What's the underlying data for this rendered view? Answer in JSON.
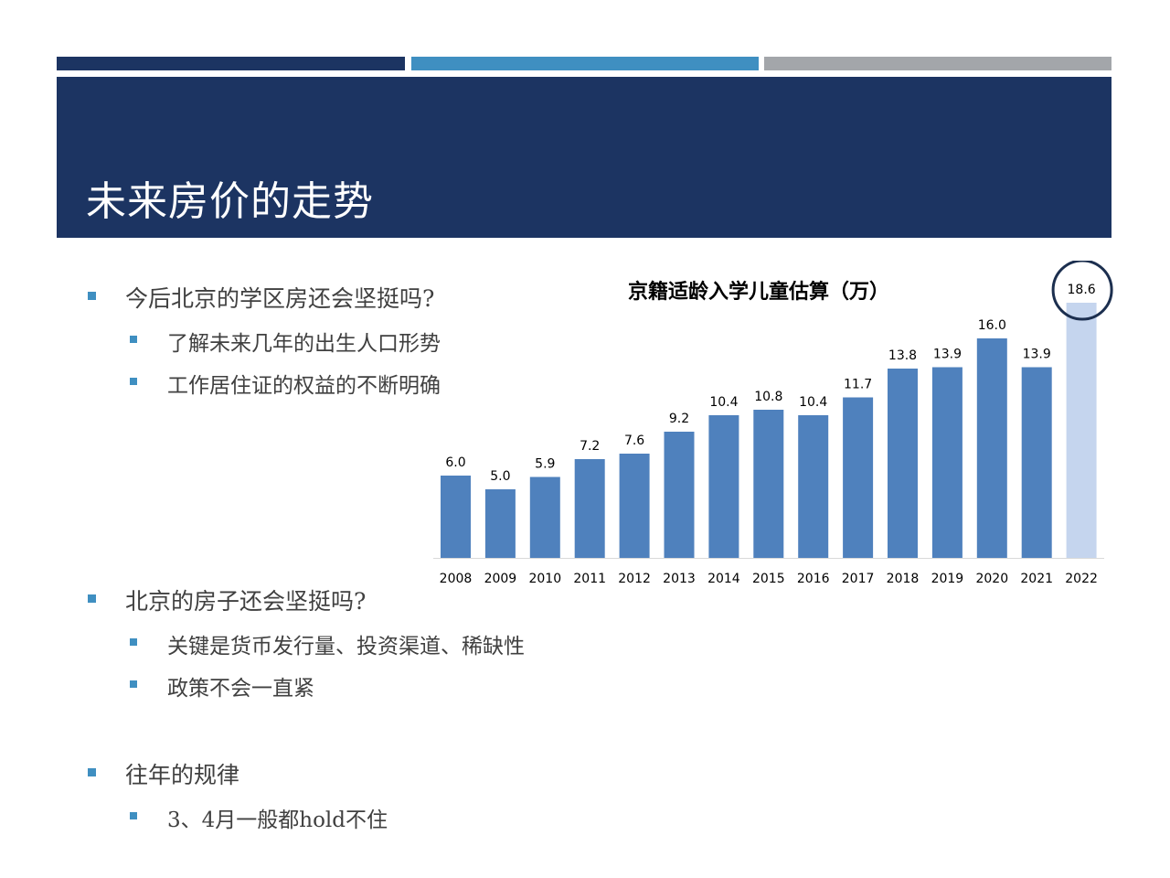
{
  "slide": {
    "title": "未来房价的走势",
    "colors": {
      "navy": "#1c3462",
      "blue": "#3f8fc1",
      "gray": "#a3a6aa"
    }
  },
  "bullets": {
    "q1": "今后北京的学区房还会坚挺吗?",
    "q1_sub1": "了解未来几年的出生人口形势",
    "q1_sub2": "工作居住证的权益的不断明确",
    "q2": "北京的房子还会坚挺吗?",
    "q2_sub1": "关键是货币发行量、投资渠道、稀缺性",
    "q2_sub2": "政策不会一直紧",
    "q3": "往年的规律",
    "q3_sub1": "3、4月一般都hold不住"
  },
  "chart_data": {
    "type": "bar",
    "title": "京籍适龄入学儿童估算（万）",
    "categories": [
      "2008",
      "2009",
      "2010",
      "2011",
      "2012",
      "2013",
      "2014",
      "2015",
      "2016",
      "2017",
      "2018",
      "2019",
      "2020",
      "2021",
      "2022"
    ],
    "values": [
      6.0,
      5.0,
      5.9,
      7.2,
      7.6,
      9.2,
      10.4,
      10.8,
      10.4,
      11.7,
      13.8,
      13.9,
      16.0,
      13.9,
      18.6
    ],
    "labels": [
      "6.0",
      "5.0",
      "5.9",
      "7.2",
      "7.6",
      "9.2",
      "10.4",
      "10.8",
      "10.4",
      "11.7",
      "13.8",
      "13.9",
      "16.0",
      "13.9",
      "18.6"
    ],
    "bar_color": "#4f81bd",
    "highlight_color": "#c5d5ee",
    "highlight_index": 14,
    "circle_color": "#1c2f4f",
    "ylim": [
      0,
      20
    ],
    "grid": false,
    "legend": "none"
  }
}
